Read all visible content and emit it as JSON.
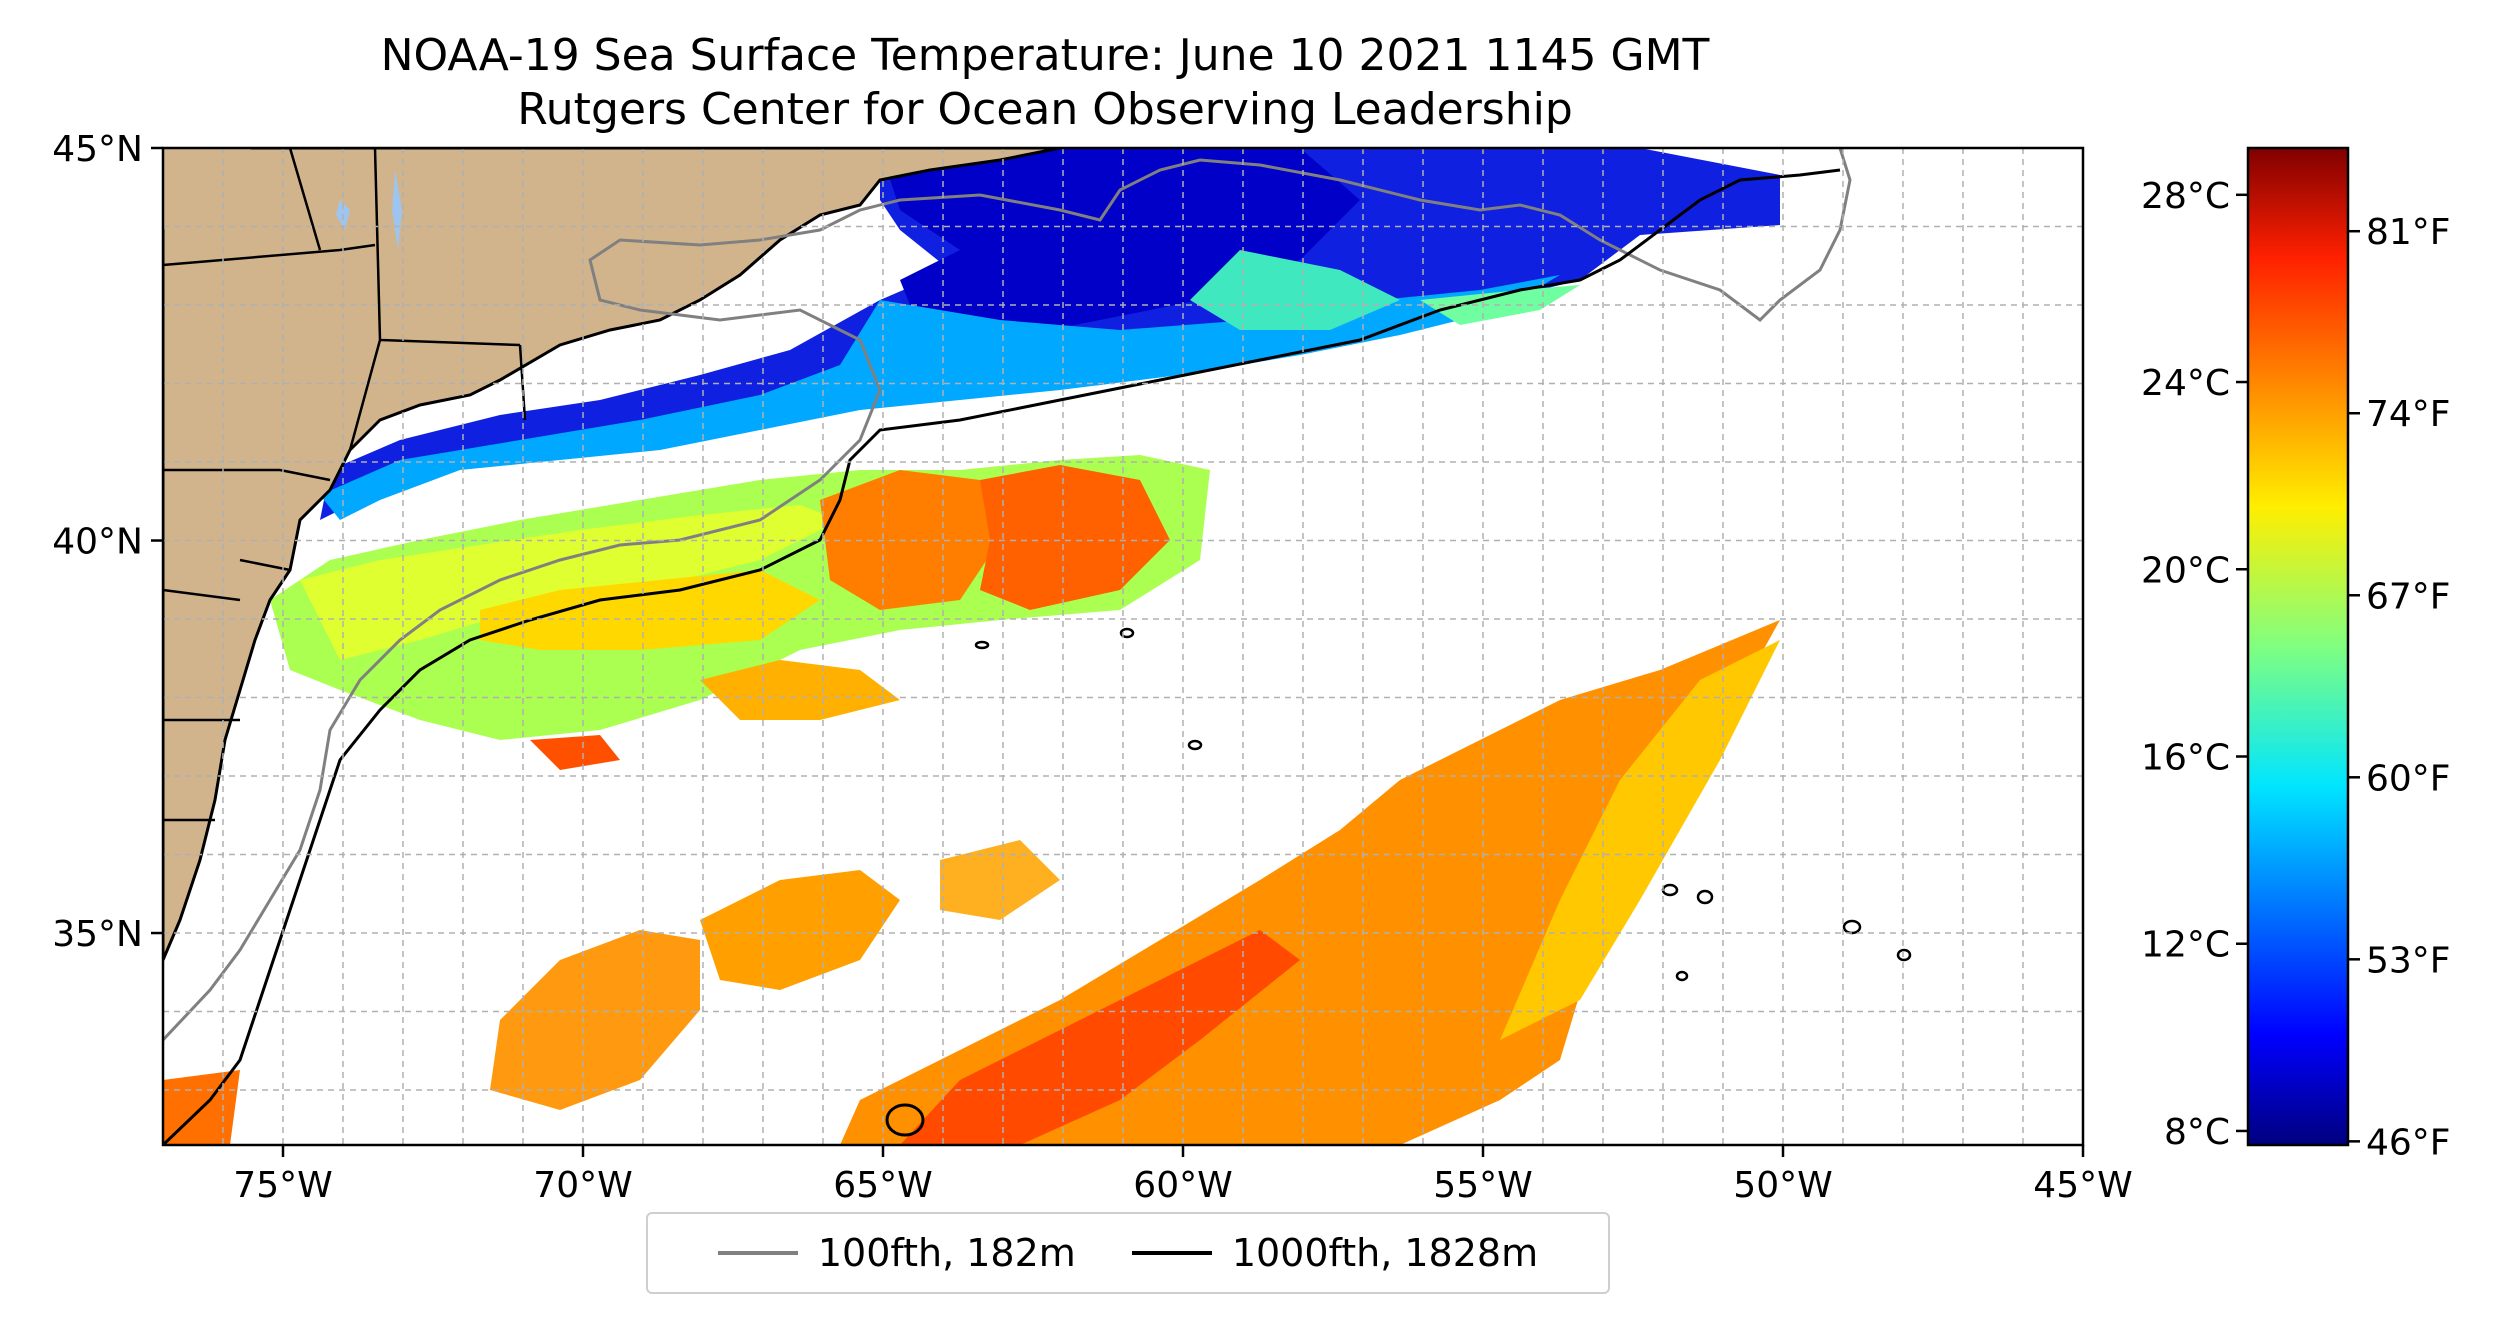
{
  "title": {
    "line1": "NOAA-19 Sea Surface Temperature: June 10 2021 1145 GMT",
    "line2": "Rutgers Center for Ocean Observing Leadership"
  },
  "map": {
    "lon_range": [
      -77,
      -45
    ],
    "lat_range": [
      32.3,
      45
    ],
    "gridlines": "dashed",
    "x_ticks": [
      "75°W",
      "70°W",
      "65°W",
      "60°W",
      "55°W",
      "50°W",
      "45°W"
    ],
    "y_ticks": [
      "35°N",
      "40°N",
      "45°N"
    ],
    "land_color": "#d2b48c",
    "lake_color": "#9ec5ef",
    "no_data_color": "#ffffff"
  },
  "colorbar": {
    "range_c": [
      7.7,
      29.0
    ],
    "celsius_ticks": [
      "8°C",
      "12°C",
      "16°C",
      "20°C",
      "24°C",
      "28°C"
    ],
    "fahrenheit_ticks": [
      "46°F",
      "53°F",
      "60°F",
      "67°F",
      "74°F",
      "81°F"
    ],
    "colormap": "jet"
  },
  "legend": {
    "placement": "bottom-center",
    "items": [
      {
        "label": "100fth, 182m",
        "color": "#808080"
      },
      {
        "label": "1000fth, 1828m",
        "color": "#000000"
      }
    ]
  }
}
